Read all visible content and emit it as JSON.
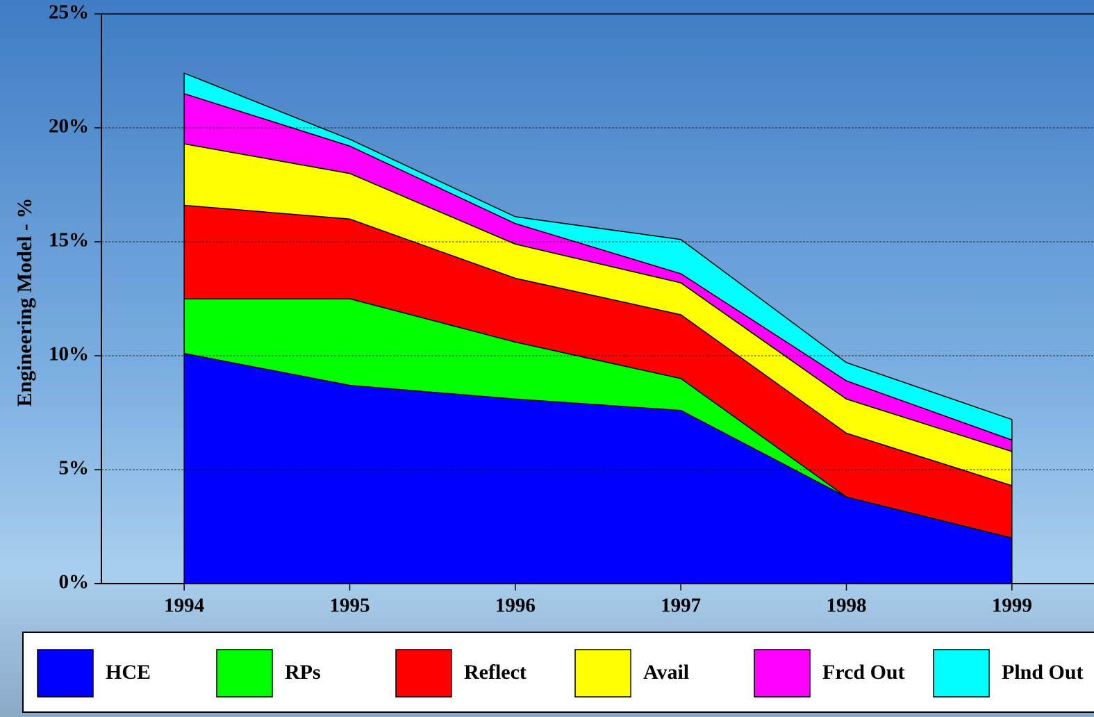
{
  "chart_data": {
    "type": "stacked-area",
    "y_label": "Engineering Model - %",
    "categories": [
      "1994",
      "1995",
      "1996",
      "1997",
      "1998",
      "1999"
    ],
    "series": [
      {
        "name": "HCE",
        "color": "#0000ff",
        "values": [
          10.1,
          8.7,
          8.1,
          7.6,
          3.8,
          2.0
        ]
      },
      {
        "name": "RPs",
        "color": "#00ff00",
        "values": [
          2.4,
          3.8,
          2.5,
          1.4,
          0,
          0
        ]
      },
      {
        "name": "Reflect",
        "color": "#ff0000",
        "values": [
          4.1,
          3.5,
          2.8,
          2.8,
          2.8,
          2.3
        ]
      },
      {
        "name": "Avail",
        "color": "#ffff00",
        "values": [
          2.7,
          2.0,
          1.5,
          1.4,
          1.5,
          1.5
        ]
      },
      {
        "name": "Frcd Out",
        "color": "#ff00ff",
        "values": [
          2.2,
          1.2,
          0.9,
          0.4,
          0.8,
          0.5
        ]
      },
      {
        "name": "Plnd Out",
        "color": "#00ffff",
        "values": [
          0.9,
          0.3,
          0.3,
          1.5,
          0.8,
          0.9
        ]
      }
    ],
    "ylim": [
      0,
      25
    ],
    "yticks": [
      {
        "value": 0,
        "label": "0%"
      },
      {
        "value": 5,
        "label": "5%"
      },
      {
        "value": 10,
        "label": "10%"
      },
      {
        "value": 15,
        "label": "15%"
      },
      {
        "value": 20,
        "label": "20%"
      },
      {
        "value": 25,
        "label": "25%"
      }
    ],
    "grid": true
  }
}
